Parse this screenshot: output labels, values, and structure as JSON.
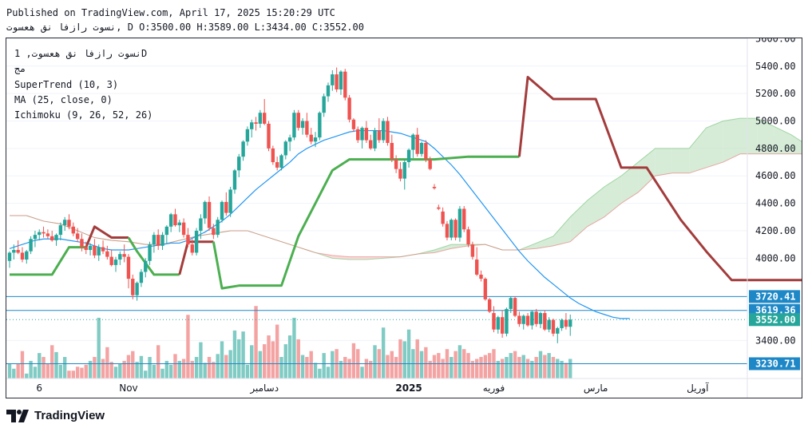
{
  "header": {
    "published": "Published on TradingView.com, April 17, 2025 15:20:29 UTC",
    "ohlc_line": "نسوت رازفا نق هعسوت, D O:3500.00 H:3589.00 L:3434.00 C:3552.00"
  },
  "legend": {
    "symbol": "نسوت رازفا نق هعسوت, 1D",
    "exchange": "مج",
    "supertrend": "SuperTrend (10, 3)",
    "ma": "MA (25, close, 0)",
    "ichimoku": "Ichimoku (9, 26, 52, 26)"
  },
  "brand": {
    "name": "TradingView",
    "icon": "tradingview-logo-icon"
  },
  "colors": {
    "up": "#26a69a",
    "down": "#ef5350",
    "vol_up": "#80cbc4",
    "vol_down": "#f4a3a3",
    "ma": "#2196f3",
    "supertrend_up": "#4caf50",
    "supertrend_down": "#a33c3c",
    "cloud_bull": "#c8e6c9",
    "cloud_bear": "#fbd0d0",
    "hline": "#1e88c7"
  },
  "chart_data": {
    "type": "candlestick",
    "y_axis": {
      "range": [
        3230,
        5650
      ],
      "ticks": [
        "5600.00",
        "5400.00",
        "5200.00",
        "5000.00",
        "4800.00",
        "4600.00",
        "4400.00",
        "4200.00",
        "4000.00",
        "3400.00"
      ],
      "tick_values": [
        5600,
        5400,
        5200,
        5000,
        4800,
        4600,
        4400,
        4200,
        4000,
        3400
      ]
    },
    "x_axis": {
      "labels": [
        "6",
        "Nov",
        "دسامبر",
        "2025",
        "فوریه",
        "مارس",
        "آوریل"
      ],
      "label_positions": [
        7,
        28,
        60,
        94,
        114,
        138,
        162
      ]
    },
    "horizontal_levels": [
      {
        "value": 3720.41,
        "label": "3720.41"
      },
      {
        "value": 3619.36,
        "label": "3619.36"
      },
      {
        "value": 3552.0,
        "label": "3552.00",
        "dotted": true,
        "current": true
      },
      {
        "value": 3230.71,
        "label": "3230.71"
      }
    ],
    "candles": [
      [
        3980,
        4050,
        3930,
        4040
      ],
      [
        4040,
        4100,
        3990,
        4060
      ],
      [
        4060,
        4130,
        4030,
        4040
      ],
      [
        4040,
        4080,
        3970,
        3990
      ],
      [
        3990,
        4060,
        3960,
        4050
      ],
      [
        4050,
        4160,
        4030,
        4140
      ],
      [
        4140,
        4200,
        4080,
        4170
      ],
      [
        4170,
        4210,
        4130,
        4190
      ],
      [
        4190,
        4230,
        4150,
        4180
      ],
      [
        4180,
        4210,
        4140,
        4160
      ],
      [
        4160,
        4200,
        4120,
        4130
      ],
      [
        4130,
        4180,
        4090,
        4170
      ],
      [
        4170,
        4260,
        4130,
        4240
      ],
      [
        4240,
        4300,
        4200,
        4280
      ],
      [
        4280,
        4320,
        4210,
        4230
      ],
      [
        4230,
        4260,
        4160,
        4180
      ],
      [
        4180,
        4220,
        4120,
        4140
      ],
      [
        4140,
        4180,
        4050,
        4080
      ],
      [
        4080,
        4120,
        4030,
        4060
      ],
      [
        4060,
        4110,
        4020,
        4090
      ],
      [
        4090,
        4140,
        4000,
        4020
      ],
      [
        4020,
        4100,
        3980,
        4080
      ],
      [
        4080,
        4130,
        4030,
        4050
      ],
      [
        4050,
        4090,
        3990,
        4010
      ],
      [
        4010,
        4060,
        3940,
        3950
      ],
      [
        3950,
        4010,
        3900,
        3990
      ],
      [
        3990,
        4050,
        3950,
        4030
      ],
      [
        4030,
        4100,
        3970,
        4010
      ],
      [
        4010,
        4030,
        3780,
        3850
      ],
      [
        3850,
        3880,
        3700,
        3730
      ],
      [
        3730,
        3830,
        3690,
        3820
      ],
      [
        3820,
        3920,
        3790,
        3900
      ],
      [
        3900,
        4000,
        3860,
        3980
      ],
      [
        3980,
        4120,
        3950,
        4100
      ],
      [
        4100,
        4190,
        4040,
        4170
      ],
      [
        4170,
        4210,
        4060,
        4090
      ],
      [
        4090,
        4190,
        4060,
        4170
      ],
      [
        4170,
        4240,
        4110,
        4230
      ],
      [
        4230,
        4330,
        4190,
        4320
      ],
      [
        4320,
        4360,
        4230,
        4240
      ],
      [
        4240,
        4280,
        4190,
        4260
      ],
      [
        4260,
        4290,
        4150,
        4170
      ],
      [
        4170,
        4220,
        4080,
        4100
      ],
      [
        4100,
        4140,
        4020,
        4040
      ],
      [
        4040,
        4220,
        4020,
        4200
      ],
      [
        4200,
        4320,
        4140,
        4290
      ],
      [
        4290,
        4420,
        4250,
        4410
      ],
      [
        4410,
        4450,
        4200,
        4220
      ],
      [
        4220,
        4250,
        4140,
        4170
      ],
      [
        4170,
        4300,
        4150,
        4280
      ],
      [
        4280,
        4420,
        4260,
        4410
      ],
      [
        4410,
        4480,
        4310,
        4330
      ],
      [
        4330,
        4520,
        4300,
        4500
      ],
      [
        4500,
        4650,
        4470,
        4640
      ],
      [
        4640,
        4760,
        4590,
        4740
      ],
      [
        4740,
        4860,
        4710,
        4850
      ],
      [
        4850,
        4960,
        4820,
        4940
      ],
      [
        4940,
        5010,
        4880,
        4990
      ],
      [
        4990,
        5030,
        4930,
        4980
      ],
      [
        4980,
        5080,
        4950,
        5060
      ],
      [
        5060,
        5160,
        4970,
        4980
      ],
      [
        4980,
        5000,
        4780,
        4800
      ],
      [
        4800,
        4820,
        4680,
        4700
      ],
      [
        4700,
        4740,
        4640,
        4660
      ],
      [
        4660,
        4760,
        4640,
        4750
      ],
      [
        4750,
        4860,
        4720,
        4850
      ],
      [
        4850,
        4900,
        4780,
        4880
      ],
      [
        4880,
        5080,
        4860,
        5060
      ],
      [
        5060,
        5080,
        4930,
        4950
      ],
      [
        4950,
        5020,
        4900,
        5000
      ],
      [
        5000,
        5060,
        4880,
        4900
      ],
      [
        4900,
        4950,
        4830,
        4850
      ],
      [
        4850,
        4920,
        4810,
        4880
      ],
      [
        4880,
        5070,
        4860,
        5060
      ],
      [
        5060,
        5200,
        5030,
        5180
      ],
      [
        5180,
        5280,
        5140,
        5260
      ],
      [
        5260,
        5370,
        5220,
        5340
      ],
      [
        5340,
        5390,
        5210,
        5230
      ],
      [
        5230,
        5370,
        5190,
        5360
      ],
      [
        5360,
        5380,
        5150,
        5170
      ],
      [
        5170,
        5190,
        4990,
        5010
      ],
      [
        5010,
        5020,
        4920,
        4940
      ],
      [
        4940,
        4960,
        4840,
        4860
      ],
      [
        4860,
        4960,
        4800,
        4950
      ],
      [
        4950,
        5000,
        4840,
        4860
      ],
      [
        4860,
        4900,
        4790,
        4800
      ],
      [
        4800,
        4950,
        4780,
        4930
      ],
      [
        4930,
        5020,
        4840,
        4860
      ],
      [
        4860,
        5020,
        4840,
        5000
      ],
      [
        5000,
        5030,
        4820,
        4840
      ],
      [
        4840,
        4900,
        4700,
        4720
      ],
      [
        4720,
        4750,
        4620,
        4650
      ],
      [
        4650,
        4700,
        4560,
        4580
      ],
      [
        4580,
        4720,
        4500,
        4700
      ],
      [
        4700,
        4800,
        4660,
        4790
      ],
      [
        4790,
        4910,
        4730,
        4900
      ],
      [
        4900,
        4950,
        4740,
        4760
      ],
      [
        4760,
        4850,
        4740,
        4840
      ],
      [
        4840,
        4860,
        4700,
        4720
      ],
      [
        4720,
        4740,
        4640,
        4650
      ],
      [
        4520,
        4540,
        4500,
        4510
      ],
      [
        4370,
        4390,
        4350,
        4360
      ],
      [
        4340,
        4370,
        4230,
        4250
      ],
      [
        4250,
        4270,
        4130,
        4150
      ],
      [
        4150,
        4290,
        4130,
        4280
      ],
      [
        4280,
        4290,
        4130,
        4150
      ],
      [
        4150,
        4380,
        4120,
        4360
      ],
      [
        4360,
        4380,
        4190,
        4210
      ],
      [
        4210,
        4230,
        4080,
        4100
      ],
      [
        4100,
        4120,
        3990,
        4010
      ],
      [
        3990,
        4080,
        3870,
        3880
      ],
      [
        3880,
        3910,
        3830,
        3850
      ],
      [
        3850,
        3860,
        3690,
        3700
      ],
      [
        3700,
        3710,
        3600,
        3610
      ],
      [
        3600,
        3650,
        3460,
        3480
      ],
      [
        3480,
        3580,
        3450,
        3570
      ],
      [
        3570,
        3620,
        3420,
        3450
      ],
      [
        3450,
        3640,
        3430,
        3630
      ],
      [
        3630,
        3720,
        3600,
        3710
      ],
      [
        3710,
        3720,
        3570,
        3580
      ],
      [
        3580,
        3610,
        3500,
        3520
      ],
      [
        3520,
        3590,
        3480,
        3580
      ],
      [
        3580,
        3600,
        3500,
        3510
      ],
      [
        3510,
        3620,
        3480,
        3610
      ],
      [
        3610,
        3630,
        3500,
        3520
      ],
      [
        3520,
        3610,
        3490,
        3600
      ],
      [
        3600,
        3620,
        3470,
        3480
      ],
      [
        3480,
        3570,
        3460,
        3550
      ],
      [
        3550,
        3560,
        3430,
        3450
      ],
      [
        3450,
        3500,
        3380,
        3490
      ],
      [
        3490,
        3560,
        3470,
        3550
      ],
      [
        3550,
        3600,
        3480,
        3500
      ],
      [
        3500,
        3589,
        3434,
        3552
      ]
    ],
    "volume": [
      15,
      10,
      15,
      28,
      5,
      18,
      12,
      26,
      22,
      15,
      34,
      27,
      14,
      22,
      8,
      8,
      12,
      11,
      14,
      18,
      22,
      62,
      20,
      32,
      17,
      12,
      15,
      18,
      24,
      28,
      17,
      23,
      8,
      22,
      14,
      34,
      10,
      18,
      14,
      25,
      18,
      20,
      65,
      18,
      22,
      37,
      16,
      22,
      17,
      25,
      38,
      24,
      29,
      49,
      40,
      48,
      14,
      34,
      74,
      28,
      35,
      44,
      38,
      55,
      22,
      35,
      44,
      62,
      40,
      24,
      22,
      28,
      16,
      10,
      26,
      12,
      28,
      30,
      18,
      22,
      20,
      36,
      30,
      12,
      20,
      18,
      34,
      30,
      52,
      24,
      28,
      22,
      40,
      38,
      50,
      30,
      40,
      28,
      32,
      18,
      24,
      26,
      20,
      30,
      22,
      28,
      34,
      30,
      26,
      18,
      20,
      22,
      24,
      26,
      30,
      18,
      20,
      22,
      26,
      28,
      22,
      24,
      20,
      18,
      22,
      28,
      24,
      26,
      22,
      20,
      18,
      16,
      20,
      22,
      24,
      20,
      18,
      22,
      24,
      20,
      18,
      22,
      16,
      20
    ],
    "series": [
      {
        "name": "MA (25, close, 0)",
        "values": [
          4070,
          4090,
          4110,
          4130,
          4140,
          4140,
          4140,
          4130,
          4120,
          4110,
          4090,
          4070,
          4060,
          4060,
          4060,
          4070,
          4080,
          4090,
          4100,
          4110,
          4110,
          4130,
          4160,
          4190,
          4230,
          4270,
          4320,
          4380,
          4440,
          4500,
          4550,
          4600,
          4650,
          4700,
          4760,
          4800,
          4830,
          4860,
          4880,
          4900,
          4920,
          4930,
          4930,
          4930,
          4930,
          4920,
          4910,
          4890,
          4870,
          4850,
          4800,
          4740,
          4680,
          4610,
          4530,
          4450,
          4370,
          4290,
          4210,
          4130,
          4050,
          3980,
          3920,
          3860,
          3810,
          3760,
          3710,
          3670,
          3640,
          3610,
          3590,
          3570,
          3560,
          3560
        ],
        "x_start": 0,
        "x_step": 2
      },
      {
        "name": "SuperTrend (10, 3)",
        "segments": [
          {
            "trend": "up",
            "values": [
              [
                0,
                3880
              ],
              [
                10,
                3880
              ],
              [
                14,
                4080
              ],
              [
                18,
                4080
              ]
            ]
          },
          {
            "trend": "down",
            "values": [
              [
                18,
                4080
              ],
              [
                20,
                4230
              ],
              [
                24,
                4150
              ],
              [
                28,
                4150
              ]
            ]
          },
          {
            "trend": "up",
            "values": [
              [
                28,
                4150
              ],
              [
                30,
                4050
              ],
              [
                34,
                3880
              ],
              [
                40,
                3880
              ]
            ]
          },
          {
            "trend": "down",
            "values": [
              [
                40,
                3880
              ],
              [
                42,
                4120
              ],
              [
                48,
                4120
              ]
            ]
          },
          {
            "trend": "up",
            "values": [
              [
                48,
                4120
              ],
              [
                50,
                3780
              ],
              [
                54,
                3800
              ],
              [
                64,
                3800
              ],
              [
                68,
                4160
              ],
              [
                76,
                4640
              ],
              [
                80,
                4720
              ],
              [
                100,
                4720
              ],
              [
                108,
                4740
              ],
              [
                120,
                4740
              ]
            ]
          },
          {
            "trend": "down",
            "values": [
              [
                120,
                4740
              ],
              [
                122,
                5320
              ],
              [
                128,
                5160
              ],
              [
                138,
                5160
              ],
              [
                144,
                4660
              ],
              [
                150,
                4660
              ],
              [
                158,
                4280
              ],
              [
                164,
                4050
              ],
              [
                170,
                3840
              ],
              [
                190,
                3840
              ]
            ]
          }
        ]
      },
      {
        "name": "Ichimoku (9, 26, 52, 26)",
        "span_a": [
          4310,
          4310,
          4270,
          4250,
          4200,
          4150,
          4130,
          4120,
          4100,
          4100,
          4130,
          4160,
          4180,
          4200,
          4200,
          4160,
          4120,
          4080,
          4040,
          4000,
          3990,
          3990,
          4000,
          4010,
          4030,
          4060,
          4100,
          4100,
          4100,
          4060,
          4060,
          4110,
          4160,
          4300,
          4420,
          4520,
          4600,
          4700,
          4800,
          4800,
          4800,
          4950,
          5000,
          5020,
          5020,
          4960,
          4900,
          4820,
          4800,
          4790,
          4750,
          4600,
          4500,
          4400,
          4250,
          4100,
          3970,
          3890
        ],
        "span_b": [
          4310,
          4310,
          4270,
          4250,
          4200,
          4150,
          4130,
          4120,
          4100,
          4100,
          4130,
          4160,
          4180,
          4200,
          4200,
          4160,
          4120,
          4080,
          4040,
          4020,
          4010,
          4010,
          4010,
          4010,
          4030,
          4040,
          4070,
          4090,
          4100,
          4060,
          4060,
          4070,
          4090,
          4120,
          4230,
          4300,
          4400,
          4480,
          4600,
          4620,
          4620,
          4660,
          4700,
          4760,
          4760,
          4760,
          4760,
          4760,
          4760,
          4760,
          4760,
          4700,
          4620,
          4500,
          4400,
          4400,
          4400,
          4400
        ],
        "x_step": 4,
        "x_start": 0
      }
    ]
  }
}
